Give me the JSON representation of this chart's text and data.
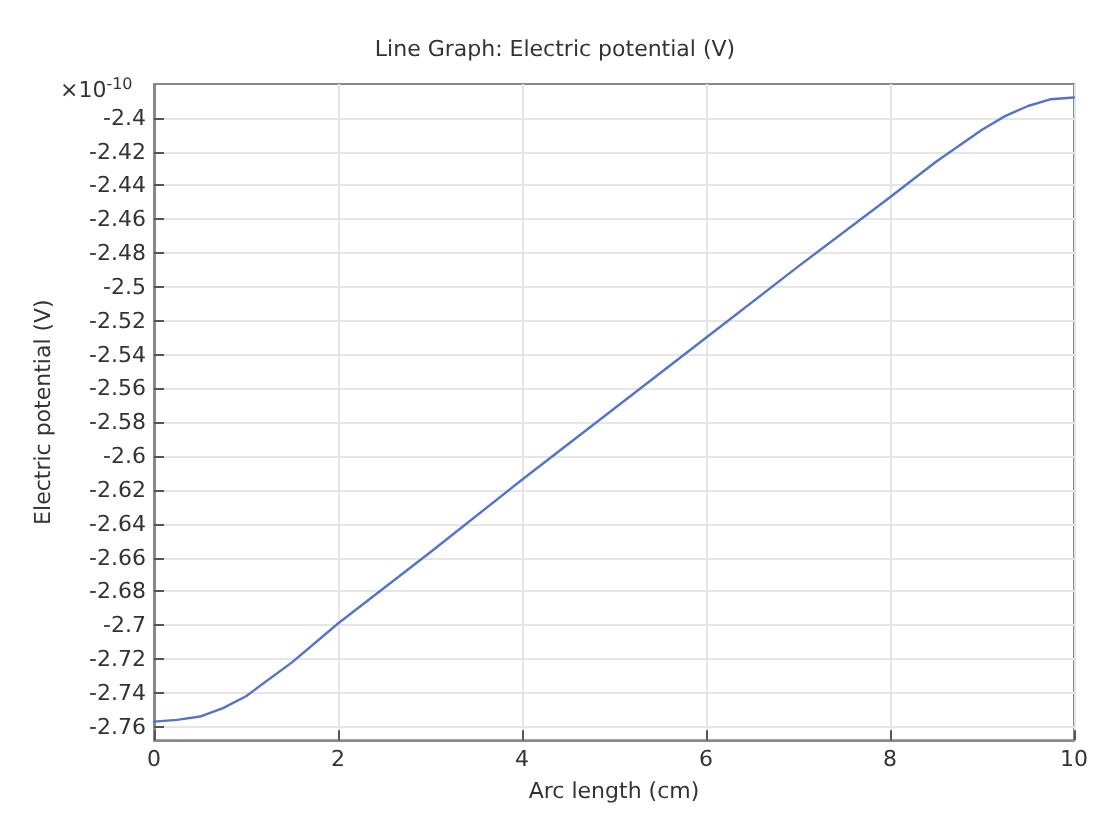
{
  "chart_data": {
    "type": "line",
    "title": "Line Graph: Electric potential (V)",
    "xlabel": "Arc length (cm)",
    "ylabel": "Electric potential (V)",
    "annotations": [
      "×10$^{-10}$"
    ],
    "x": [
      0,
      0.25,
      0.5,
      0.75,
      1,
      1.5,
      2,
      3,
      4,
      5,
      6,
      7,
      8,
      8.5,
      9,
      9.25,
      9.5,
      9.75,
      10
    ],
    "series": [
      {
        "color": "#5573c8",
        "values": [
          -2.757,
          -2.756,
          -2.754,
          -2.749,
          -2.742,
          -2.722,
          -2.699,
          -2.657,
          -2.614,
          -2.572,
          -2.53,
          -2.488,
          -2.447,
          -2.426,
          -2.407,
          -2.399,
          -2.393,
          -2.389,
          -2.388
        ]
      }
    ],
    "xlim": [
      0,
      10
    ],
    "xticks": [
      0,
      2,
      4,
      6,
      8,
      10
    ],
    "ylim": [
      -2.768,
      -2.38
    ],
    "yticks": [
      -2.76,
      -2.74,
      -2.72,
      -2.7,
      -2.68,
      -2.66,
      -2.64,
      -2.62,
      -2.6,
      -2.58,
      -2.56,
      -2.54,
      -2.52,
      -2.5,
      -2.48,
      -2.46,
      -2.44,
      -2.42,
      -2.4
    ],
    "grid": true,
    "marker": "none",
    "line_style": "solid"
  }
}
